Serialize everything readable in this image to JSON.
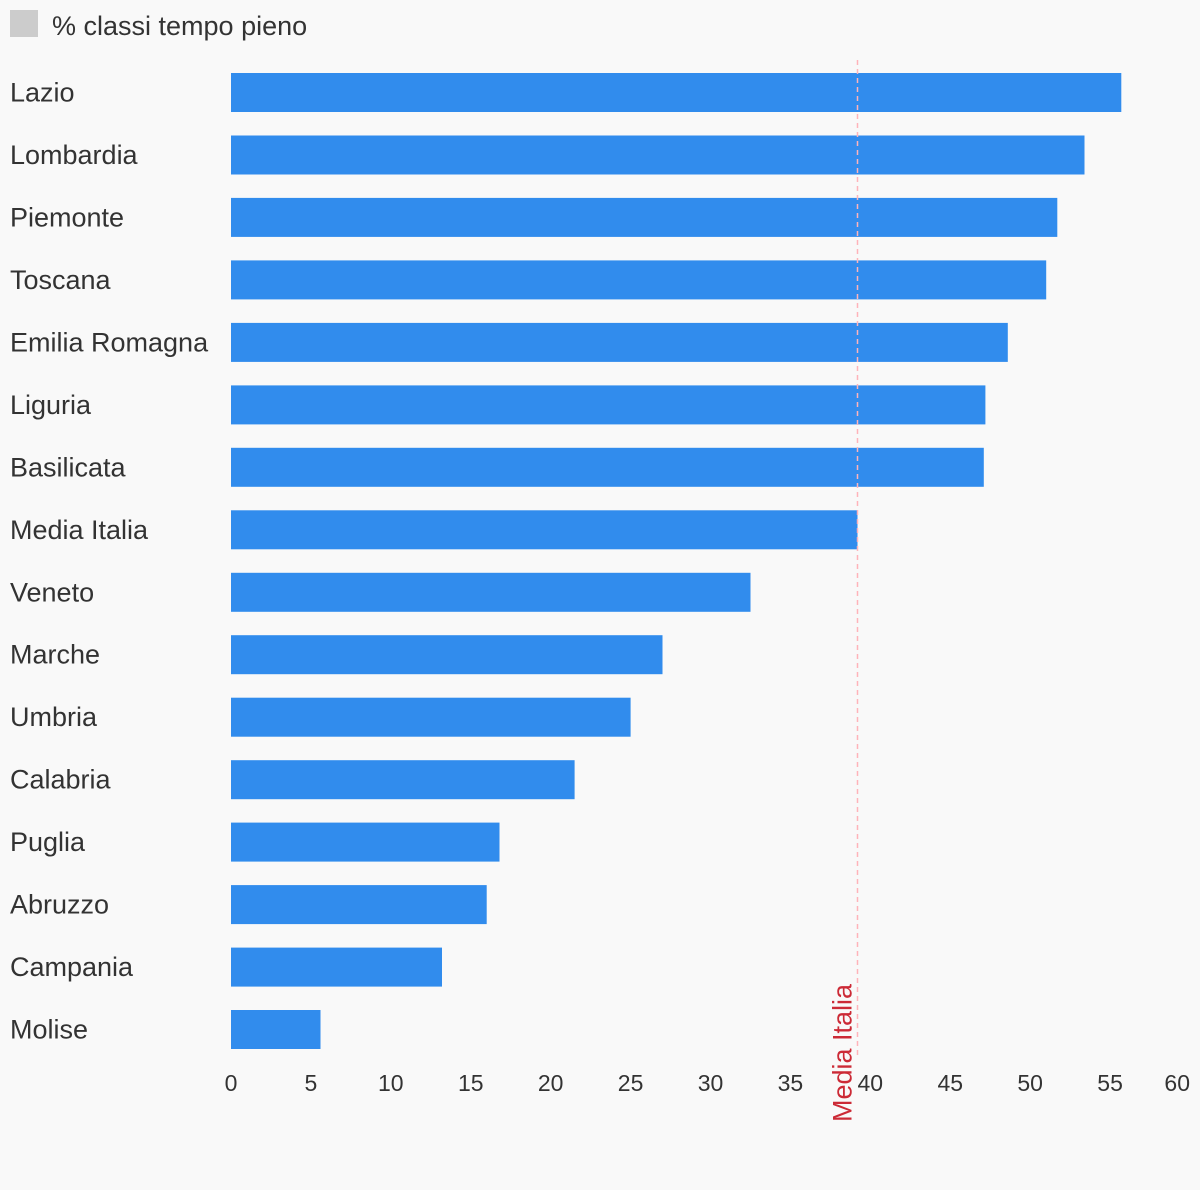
{
  "chart_data": {
    "type": "bar",
    "orientation": "horizontal",
    "legend_position": "top-left",
    "grid": false,
    "categories": [
      "Lazio",
      "Lombardia",
      "Piemonte",
      "Toscana",
      "Emilia Romagna",
      "Liguria",
      "Basilicata",
      "Media Italia",
      "Veneto",
      "Marche",
      "Umbria",
      "Calabria",
      "Puglia",
      "Abruzzo",
      "Campania",
      "Molise"
    ],
    "series": [
      {
        "name": "% classi tempo pieno",
        "color": "#318ced",
        "values": [
          55.7,
          53.4,
          51.7,
          51.0,
          48.6,
          47.2,
          47.1,
          39.2,
          32.5,
          27.0,
          25.0,
          21.5,
          16.8,
          16.0,
          13.2,
          5.6
        ]
      }
    ],
    "legend_swatch_color": "#cccccc",
    "xlim": [
      0,
      60
    ],
    "xticks": [
      "0",
      "5",
      "10",
      "15",
      "20",
      "25",
      "30",
      "35",
      "40",
      "45",
      "50",
      "55",
      "60"
    ],
    "reference_line": {
      "label": "Media Italia",
      "value": 39.2,
      "color": "#cc2a36",
      "line_color": "#ffb3ba"
    }
  }
}
